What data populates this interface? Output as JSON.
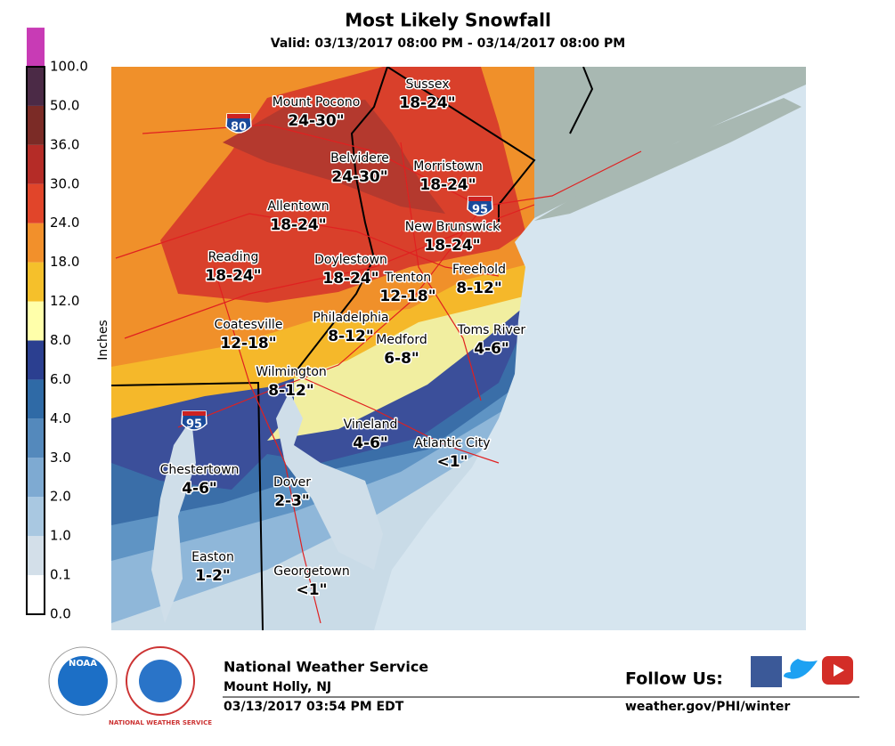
{
  "header": {
    "title": "Most Likely Snowfall",
    "subtitle": "Valid: 03/13/2017 08:00 PM - 03/14/2017 08:00 PM"
  },
  "legend": {
    "axis_label": "Inches",
    "ticks": [
      "0.0",
      "0.1",
      "1.0",
      "2.0",
      "3.0",
      "4.0",
      "6.0",
      "8.0",
      "12.0",
      "18.0",
      "24.0",
      "30.0",
      "36.0",
      "50.0",
      "100.0"
    ],
    "colors": [
      "#ffffff",
      "#d3dfe9",
      "#a9c8e1",
      "#7eaad2",
      "#5489bc",
      "#2f6aa6",
      "#2b3f90",
      "#ffffaa",
      "#f5c02b",
      "#f2902b",
      "#e1452a",
      "#b52c27",
      "#7b2b26",
      "#4b2a46",
      "#c83bb5"
    ]
  },
  "map": {
    "places": [
      {
        "name": "Sussex",
        "amount": "18-24\""
      },
      {
        "name": "Mount Pocono",
        "amount": "24-30\""
      },
      {
        "name": "Belvidere",
        "amount": "24-30\""
      },
      {
        "name": "Morristown",
        "amount": "18-24\""
      },
      {
        "name": "Allentown",
        "amount": "18-24\""
      },
      {
        "name": "New Brunswick",
        "amount": "18-24\""
      },
      {
        "name": "Reading",
        "amount": "18-24\""
      },
      {
        "name": "Doylestown",
        "amount": "18-24\""
      },
      {
        "name": "Trenton",
        "amount": "12-18\""
      },
      {
        "name": "Freehold",
        "amount": "8-12\""
      },
      {
        "name": "Coatesville",
        "amount": "12-18\""
      },
      {
        "name": "Philadelphia",
        "amount": "8-12\""
      },
      {
        "name": "Medford",
        "amount": "6-8\""
      },
      {
        "name": "Toms River",
        "amount": "4-6\""
      },
      {
        "name": "Wilmington",
        "amount": "8-12\""
      },
      {
        "name": "Vineland",
        "amount": "4-6\""
      },
      {
        "name": "Atlantic City",
        "amount": "<1\""
      },
      {
        "name": "Chestertown",
        "amount": "4-6\""
      },
      {
        "name": "Dover",
        "amount": "2-3\""
      },
      {
        "name": "Easton",
        "amount": "1-2\""
      },
      {
        "name": "Georgetown",
        "amount": "<1\""
      }
    ],
    "shields": [
      "80",
      "95",
      "95"
    ]
  },
  "footer": {
    "logos": [
      "NOAA",
      "NATIONAL WEATHER SERVICE"
    ],
    "org": "National Weather Service",
    "office": "Mount Holly, NJ",
    "timestamp": "03/13/2017 03:54 PM EDT",
    "follow": "Follow Us:",
    "url": "weather.gov/PHI/winter"
  }
}
